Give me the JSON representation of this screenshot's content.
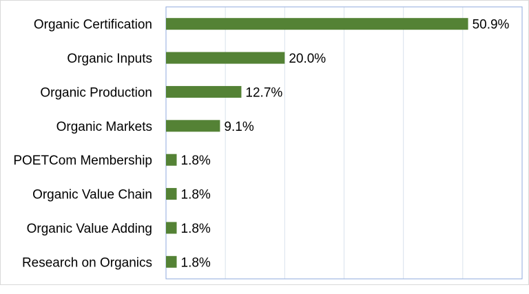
{
  "chart_data": {
    "type": "bar",
    "orientation": "horizontal",
    "categories": [
      "Organic Certification",
      "Organic Inputs",
      "Organic Production",
      "Organic Markets",
      "POETCom Membership",
      "Organic Value Chain",
      "Organic Value Adding",
      "Research on Organics"
    ],
    "values": [
      50.9,
      20.0,
      12.7,
      9.1,
      1.8,
      1.8,
      1.8,
      1.8
    ],
    "value_labels": [
      "50.9%",
      "20.0%",
      "12.7%",
      "9.1%",
      "1.8%",
      "1.8%",
      "1.8%",
      "1.8%"
    ],
    "title": "",
    "xlabel": "",
    "ylabel": "",
    "xlim": [
      0,
      60
    ],
    "grid": true,
    "legend": "none",
    "bar_color": "#548235",
    "grid_color": "#d9e2ec",
    "axis_color": "#8faadc"
  }
}
